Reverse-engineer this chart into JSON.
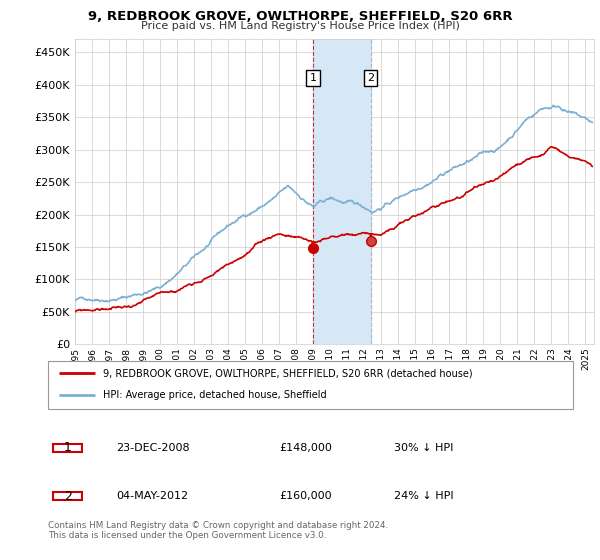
{
  "title": "9, REDBROOK GROVE, OWLTHORPE, SHEFFIELD, S20 6RR",
  "subtitle": "Price paid vs. HM Land Registry's House Price Index (HPI)",
  "legend_line1": "9, REDBROOK GROVE, OWLTHORPE, SHEFFIELD, S20 6RR (detached house)",
  "legend_line2": "HPI: Average price, detached house, Sheffield",
  "transaction1_date": "23-DEC-2008",
  "transaction1_price": "£148,000",
  "transaction1_hpi": "30% ↓ HPI",
  "transaction2_date": "04-MAY-2012",
  "transaction2_price": "£160,000",
  "transaction2_hpi": "24% ↓ HPI",
  "footer": "Contains HM Land Registry data © Crown copyright and database right 2024.\nThis data is licensed under the Open Government Licence v3.0.",
  "red_color": "#cc0000",
  "blue_color": "#7ab0d4",
  "highlight_color": "#d6e8f5",
  "ylim_min": 0,
  "ylim_max": 470000,
  "yticks": [
    0,
    50000,
    100000,
    150000,
    200000,
    250000,
    300000,
    350000,
    400000,
    450000
  ],
  "transaction1_x": 2008.98,
  "transaction1_y": 148000,
  "transaction2_x": 2012.37,
  "transaction2_y": 160000,
  "highlight_x1": 2008.98,
  "highlight_x2": 2012.37,
  "xmin": 1995,
  "xmax": 2025.5
}
